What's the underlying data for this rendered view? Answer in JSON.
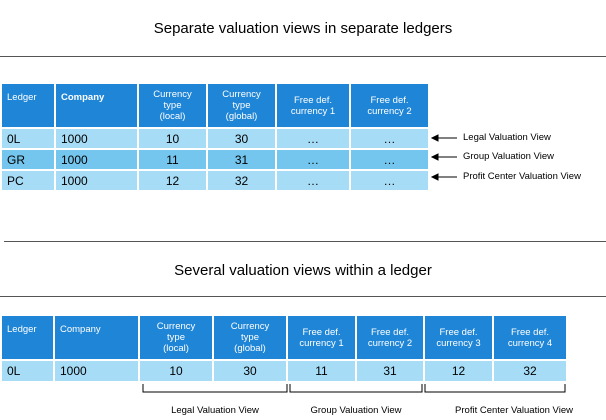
{
  "section1": {
    "title": "Separate valuation views in separate ledgers",
    "headers": [
      "Ledger",
      "Company",
      "Currency\ntype\n(local)",
      "Currency\ntype\n(global)",
      "Free def.\ncurrency 1",
      "Free def.\ncurrency 2"
    ],
    "rows": [
      [
        "0L",
        "1000",
        "10",
        "30",
        "…",
        "…"
      ],
      [
        "GR",
        "1000",
        "11",
        "31",
        "…",
        "…"
      ],
      [
        "PC",
        "1000",
        "12",
        "32",
        "…",
        "…"
      ]
    ],
    "annotations": [
      "Legal Valuation View",
      "Group Valuation View",
      "Profit Center Valuation View"
    ]
  },
  "section2": {
    "title": "Several valuation views within a ledger",
    "headers": [
      "Ledger",
      "Company",
      "Currency\ntype\n(local)",
      "Currency\ntype\n(global)",
      "Free def.\ncurrency 1",
      "Free def.\ncurrency 2",
      "Free def.\ncurrency 3",
      "Free def.\ncurrency  4"
    ],
    "row": [
      "0L",
      "1000",
      "10",
      "30",
      "11",
      "31",
      "12",
      "32"
    ],
    "groups": [
      "Legal Valuation View",
      "Group Valuation View",
      "Profit Center Valuation View"
    ]
  },
  "colors": {
    "header": "#1f85d6",
    "row_light": "#a6dcf6",
    "row_mid": "#74c6ee"
  }
}
